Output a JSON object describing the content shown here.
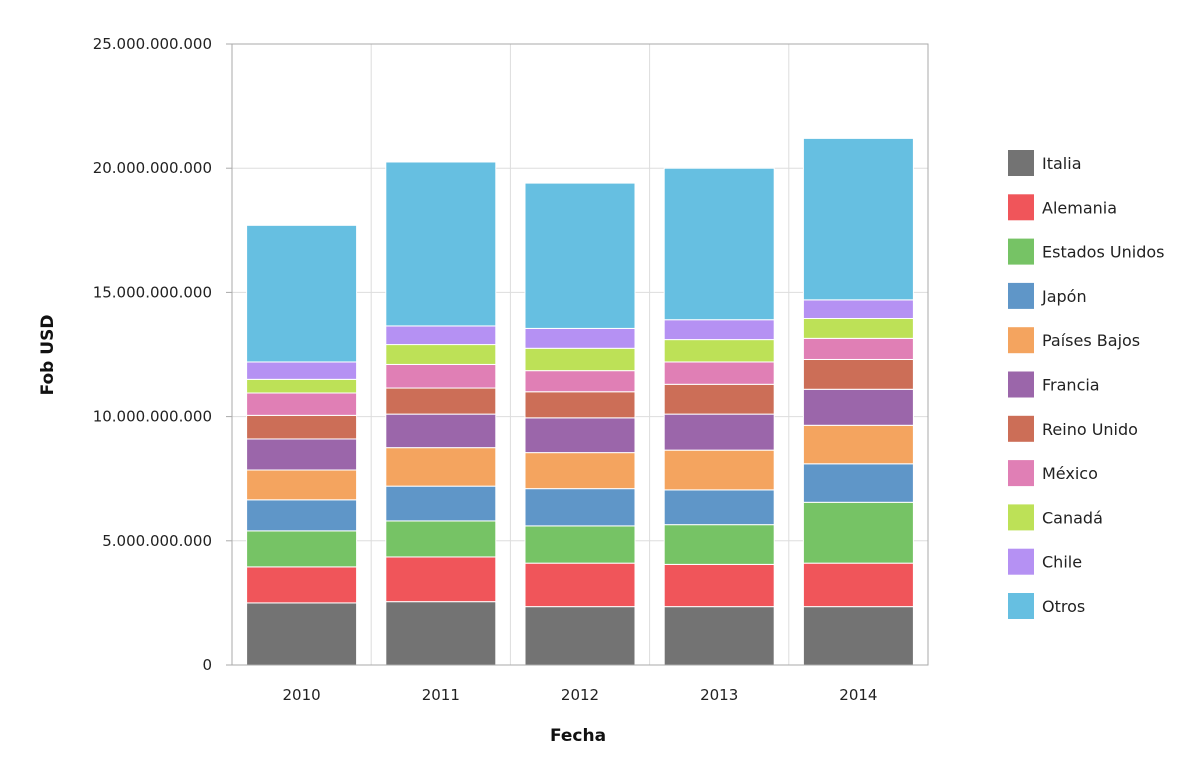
{
  "chart_data": {
    "type": "bar",
    "stacked": true,
    "title": "",
    "xlabel": "Fecha",
    "ylabel": "Fob USD",
    "ylim": [
      0,
      25000000000
    ],
    "yticks": [
      0,
      5000000000,
      10000000000,
      15000000000,
      20000000000,
      25000000000
    ],
    "ytick_labels": [
      "0",
      "5.000.000.000",
      "10.000.000.000",
      "15.000.000.000",
      "20.000.000.000",
      "25.000.000.000"
    ],
    "categories": [
      "2010",
      "2011",
      "2012",
      "2013",
      "2014"
    ],
    "grid": true,
    "legend_position": "right",
    "series": [
      {
        "name": "Italia",
        "color": "#737373",
        "values": [
          2500000000,
          2550000000,
          2350000000,
          2350000000,
          2350000000
        ]
      },
      {
        "name": "Alemania",
        "color": "#f0555a",
        "values": [
          1450000000,
          1800000000,
          1750000000,
          1700000000,
          1750000000
        ]
      },
      {
        "name": "Estados Unidos",
        "color": "#76c365",
        "values": [
          1450000000,
          1450000000,
          1500000000,
          1600000000,
          2450000000
        ]
      },
      {
        "name": "Japón",
        "color": "#5f96c8",
        "values": [
          1250000000,
          1400000000,
          1500000000,
          1400000000,
          1550000000
        ]
      },
      {
        "name": "Países Bajos",
        "color": "#f4a45f",
        "values": [
          1200000000,
          1550000000,
          1450000000,
          1600000000,
          1550000000
        ]
      },
      {
        "name": "Francia",
        "color": "#9b66aa",
        "values": [
          1250000000,
          1350000000,
          1400000000,
          1450000000,
          1450000000
        ]
      },
      {
        "name": "Reino Unido",
        "color": "#cc6e57",
        "values": [
          950000000,
          1050000000,
          1050000000,
          1200000000,
          1200000000
        ]
      },
      {
        "name": "México",
        "color": "#e07fb5",
        "values": [
          900000000,
          950000000,
          850000000,
          900000000,
          850000000
        ]
      },
      {
        "name": "Canadá",
        "color": "#bde157",
        "values": [
          550000000,
          800000000,
          900000000,
          900000000,
          800000000
        ]
      },
      {
        "name": "Chile",
        "color": "#b591f3",
        "values": [
          700000000,
          750000000,
          800000000,
          800000000,
          750000000
        ]
      },
      {
        "name": "Otros",
        "color": "#66bfe1",
        "values": [
          5500000000,
          6600000000,
          5850000000,
          6100000000,
          6500000000
        ]
      }
    ]
  }
}
